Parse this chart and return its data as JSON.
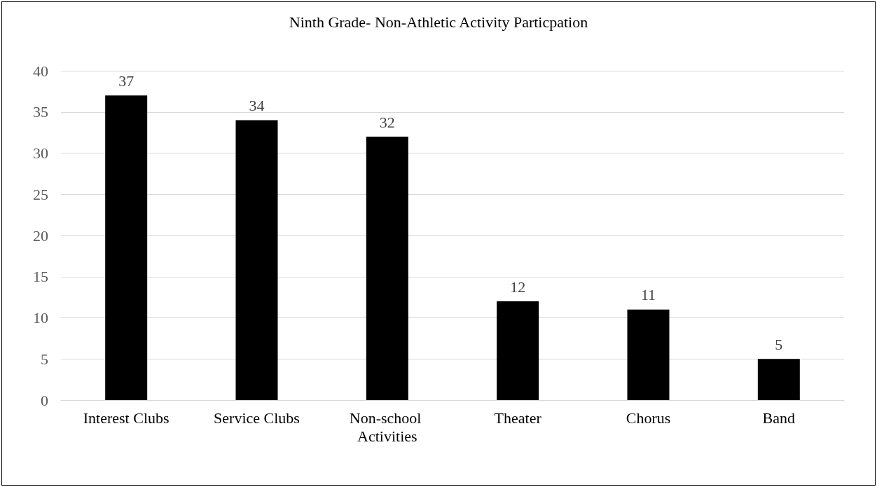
{
  "chart_data": {
    "type": "bar",
    "title": "Ninth Grade- Non-Athletic Activity Particpation",
    "categories": [
      "Interest Clubs",
      "Service Clubs",
      "Non-school Activities",
      "Theater",
      "Chorus",
      "Band"
    ],
    "values": [
      37,
      34,
      32,
      12,
      11,
      5
    ],
    "color": "#000000",
    "ylim": [
      0,
      40
    ],
    "yticks": [
      0,
      5,
      10,
      15,
      20,
      25,
      30,
      35,
      40
    ],
    "grid": "y",
    "data_labels": true
  }
}
